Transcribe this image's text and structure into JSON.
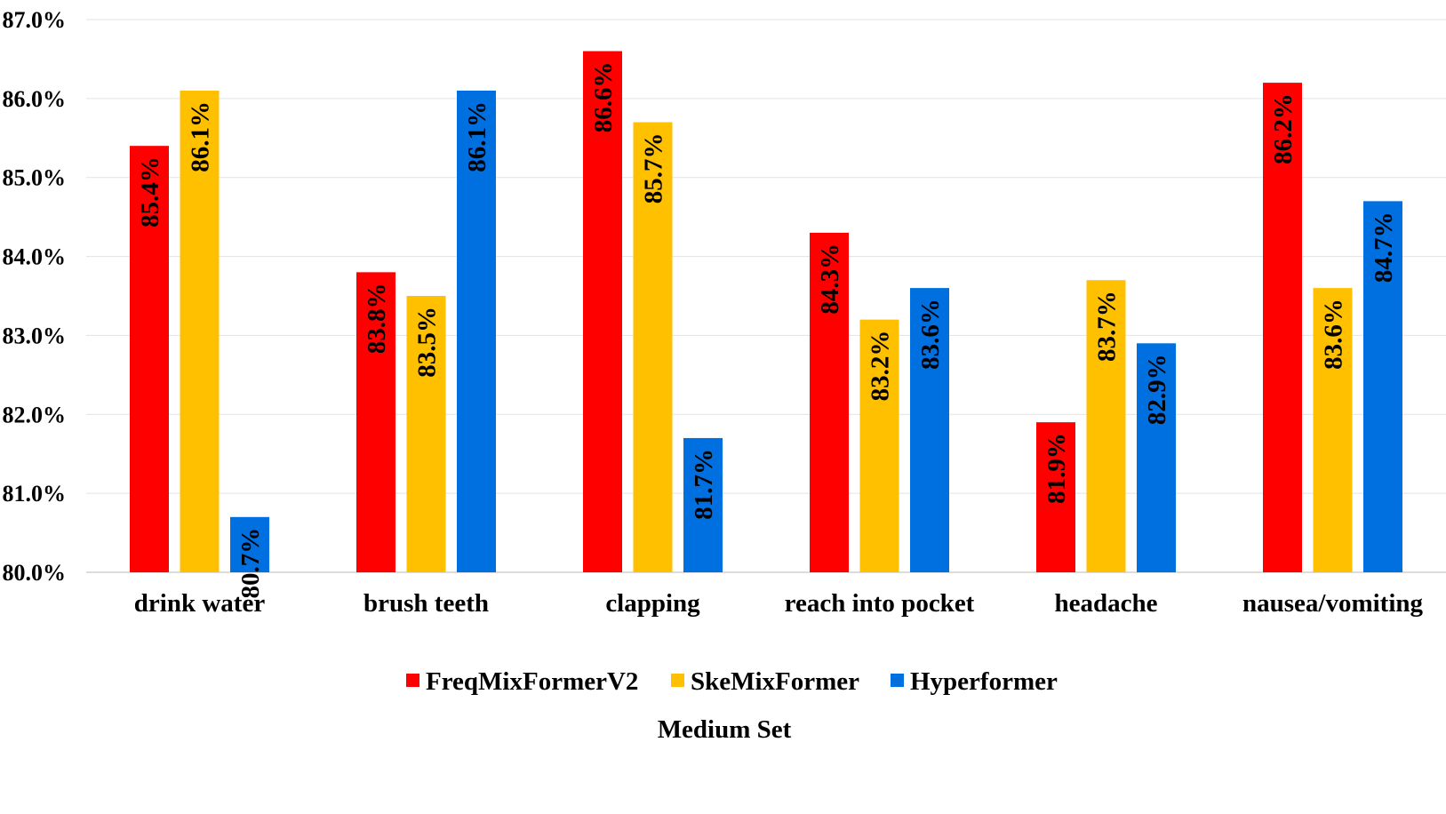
{
  "chart_data": {
    "type": "bar",
    "categories": [
      "drink water",
      "brush teeth",
      "clapping",
      "reach into pocket",
      "headache",
      "nausea/vomiting"
    ],
    "series": [
      {
        "name": "FreqMixFormerV2",
        "color": "#FF0000",
        "values": [
          85.4,
          83.8,
          86.6,
          84.3,
          81.9,
          86.2
        ],
        "labels": [
          "85.4%",
          "83.8%",
          "86.6%",
          "84.3%",
          "81.9%",
          "86.2%"
        ]
      },
      {
        "name": "SkeMixFormer",
        "color": "#FFC000",
        "values": [
          86.1,
          83.5,
          85.7,
          83.2,
          83.7,
          83.6
        ],
        "labels": [
          "86.1%",
          "83.5%",
          "85.7%",
          "83.2%",
          "83.7%",
          "83.6%"
        ]
      },
      {
        "name": "Hyperformer",
        "color": "#0070E0",
        "values": [
          80.7,
          86.1,
          81.7,
          83.6,
          82.9,
          84.7
        ],
        "labels": [
          "80.7%",
          "86.1%",
          "81.7%",
          "83.6%",
          "82.9%",
          "84.7%"
        ]
      }
    ],
    "yticks": [
      "80.0%",
      "81.0%",
      "82.0%",
      "83.0%",
      "84.0%",
      "85.0%",
      "86.0%",
      "87.0%"
    ],
    "ylim": [
      80,
      87
    ],
    "subtitle": "Medium Set",
    "legend_position": "bottom",
    "grid": true
  }
}
